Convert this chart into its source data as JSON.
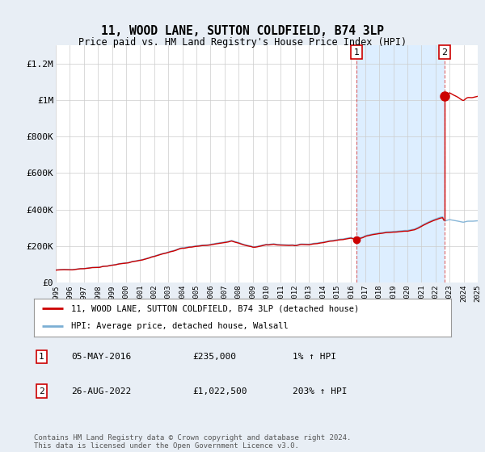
{
  "title": "11, WOOD LANE, SUTTON COLDFIELD, B74 3LP",
  "subtitle": "Price paid vs. HM Land Registry's House Price Index (HPI)",
  "legend_line1": "11, WOOD LANE, SUTTON COLDFIELD, B74 3LP (detached house)",
  "legend_line2": "HPI: Average price, detached house, Walsall",
  "annotation1_label": "1",
  "annotation1_date": "05-MAY-2016",
  "annotation1_price": "£235,000",
  "annotation1_hpi": "1% ↑ HPI",
  "annotation2_label": "2",
  "annotation2_date": "26-AUG-2022",
  "annotation2_price": "£1,022,500",
  "annotation2_hpi": "203% ↑ HPI",
  "footer": "Contains HM Land Registry data © Crown copyright and database right 2024.\nThis data is licensed under the Open Government Licence v3.0.",
  "hpi_color": "#7bafd4",
  "price_color": "#cc0000",
  "background_color": "#e8eef5",
  "plot_bg_color": "#ffffff",
  "grid_color": "#cccccc",
  "annotation_box_color": "#cc0000",
  "shade_color": "#ddeeff",
  "ylim": [
    0,
    1300000
  ],
  "yticks": [
    0,
    200000,
    400000,
    600000,
    800000,
    1000000,
    1200000
  ],
  "ytick_labels": [
    "£0",
    "£200K",
    "£400K",
    "£600K",
    "£800K",
    "£1M",
    "£1.2M"
  ],
  "year_start": 1995,
  "year_end": 2025,
  "sale1_year": 2016.37,
  "sale1_price": 235000,
  "sale2_year": 2022.65,
  "sale2_price": 1022500
}
